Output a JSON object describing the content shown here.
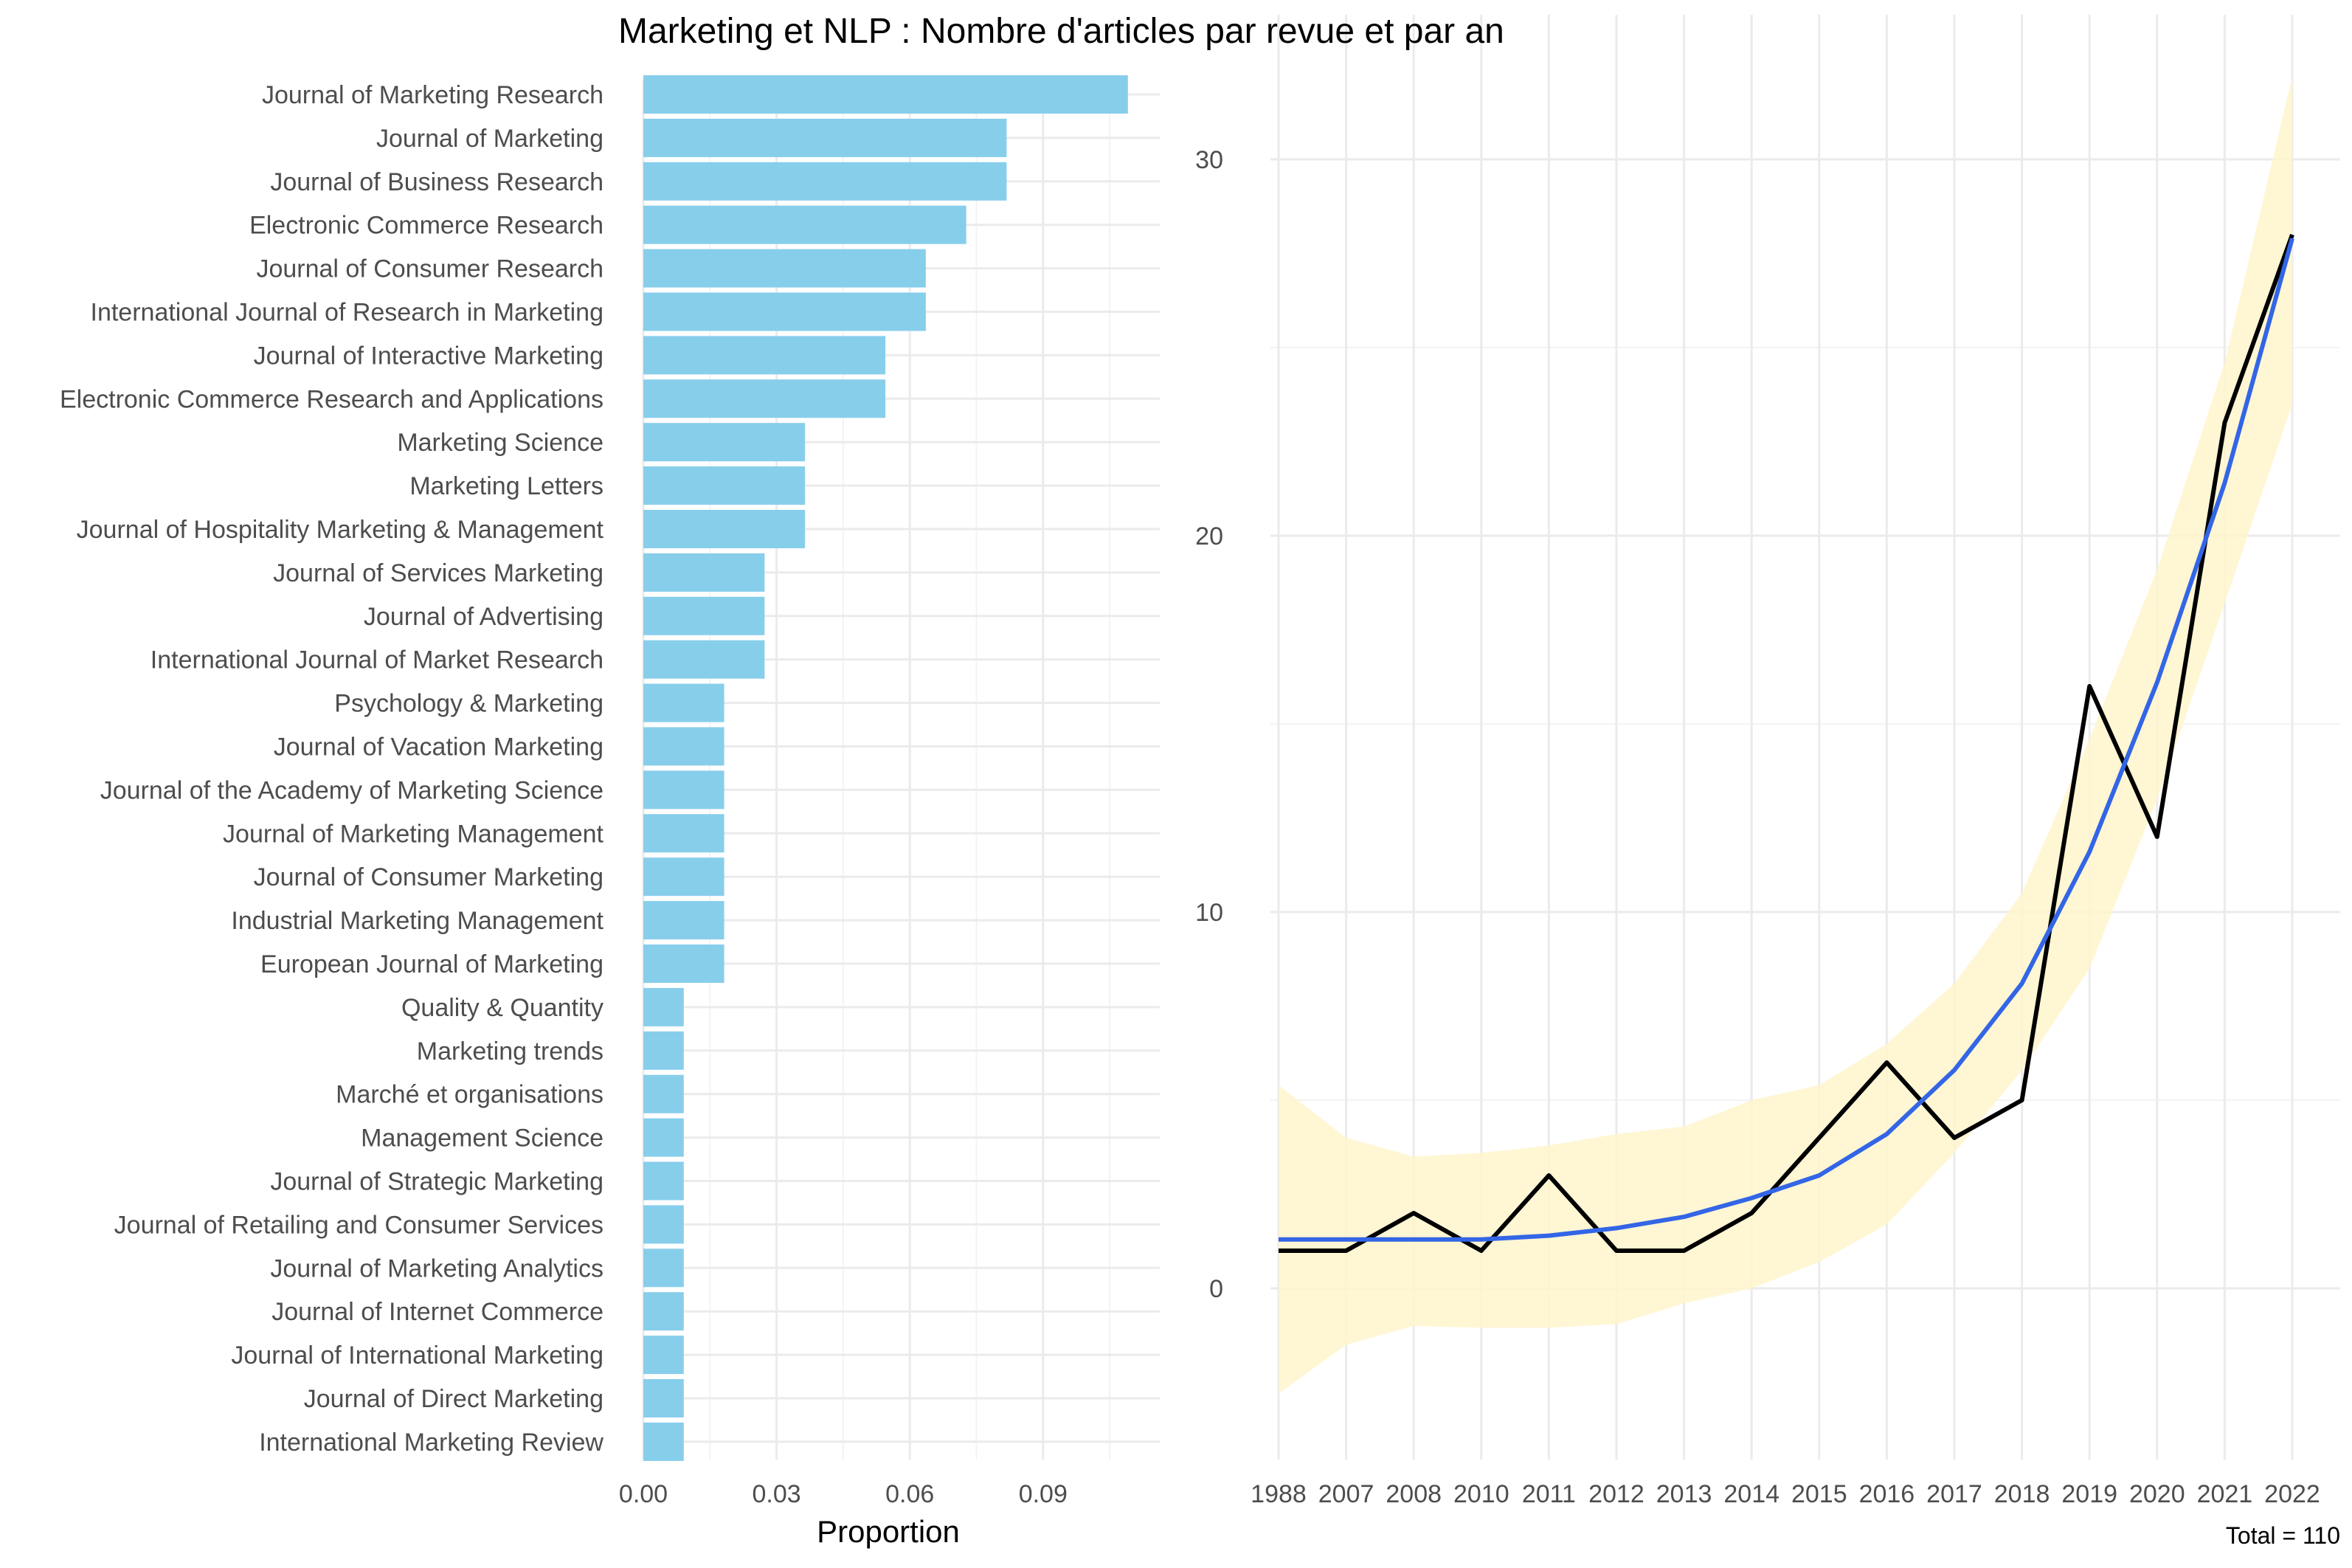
{
  "title": "Marketing et NLP : Nombre d'articles par revue et par an",
  "note": "Total = 110",
  "colors": {
    "bar": "#87CEEB",
    "observed": "#000000",
    "trend": "#3366e6",
    "band": "#FFF5CC"
  },
  "chart_data": [
    {
      "type": "bar",
      "orientation": "horizontal",
      "xlabel": "Proportion",
      "ylabel": "",
      "xlim": [
        0,
        0.115
      ],
      "xticks": [
        "0.00",
        "0.03",
        "0.06",
        "0.09"
      ],
      "categories": [
        "Journal of Marketing Research",
        "Journal of Marketing",
        "Journal of Business Research",
        "Electronic Commerce Research",
        "Journal of Consumer Research",
        "International Journal of Research in Marketing",
        "Journal of Interactive Marketing",
        "Electronic Commerce Research and Applications",
        "Marketing Science",
        "Marketing Letters",
        "Journal of Hospitality Marketing & Management",
        "Journal of Services Marketing",
        "Journal of Advertising",
        "International Journal of Market Research",
        "Psychology & Marketing",
        "Journal of Vacation Marketing",
        "Journal of the Academy of Marketing Science",
        "Journal of Marketing Management",
        "Journal of Consumer Marketing",
        "Industrial Marketing Management",
        "European Journal of Marketing",
        "Quality & Quantity",
        "Marketing trends",
        "Marché et organisations",
        "Management Science",
        "Journal of Strategic Marketing",
        "Journal of Retailing and Consumer Services",
        "Journal of Marketing Analytics",
        "Journal of Internet Commerce",
        "Journal of International Marketing",
        "Journal of Direct Marketing",
        "International Marketing Review"
      ],
      "values": [
        0.1091,
        0.0818,
        0.0818,
        0.0727,
        0.0636,
        0.0636,
        0.0545,
        0.0545,
        0.0364,
        0.0364,
        0.0364,
        0.0273,
        0.0273,
        0.0273,
        0.0182,
        0.0182,
        0.0182,
        0.0182,
        0.0182,
        0.0182,
        0.0182,
        0.0091,
        0.0091,
        0.0091,
        0.0091,
        0.0091,
        0.0091,
        0.0091,
        0.0091,
        0.0091,
        0.0091,
        0.0091
      ],
      "grid": true
    },
    {
      "type": "line",
      "xlabel": "",
      "ylabel": "",
      "categories": [
        "1988",
        "2007",
        "2008",
        "2010",
        "2011",
        "2012",
        "2013",
        "2014",
        "2015",
        "2016",
        "2017",
        "2018",
        "2019",
        "2020",
        "2021",
        "2022"
      ],
      "ylim": [
        -4.8,
        32
      ],
      "yticks": [
        "0",
        "10",
        "20",
        "30"
      ],
      "series": [
        {
          "role": "observed",
          "values": [
            1,
            1,
            2,
            1,
            3,
            1,
            1,
            2,
            4,
            6,
            4,
            5,
            16,
            12,
            23,
            28
          ]
        },
        {
          "role": "trend",
          "values": [
            1.3,
            1.3,
            1.3,
            1.3,
            1.4,
            1.6,
            1.9,
            2.4,
            3.0,
            4.1,
            5.8,
            8.1,
            11.6,
            16.1,
            21.4,
            27.9
          ]
        }
      ],
      "band": {
        "lower": [
          -2.8,
          -1.5,
          -1.0,
          -1.05,
          -1.05,
          -0.95,
          -0.4,
          0.0,
          0.7,
          1.7,
          3.6,
          5.8,
          8.5,
          13.0,
          18.2,
          23.5
        ],
        "upper": [
          5.4,
          4.0,
          3.5,
          3.6,
          3.8,
          4.1,
          4.3,
          5.0,
          5.4,
          6.5,
          8.1,
          10.5,
          14.6,
          19.1,
          24.6,
          32.2
        ]
      },
      "grid": true
    }
  ]
}
